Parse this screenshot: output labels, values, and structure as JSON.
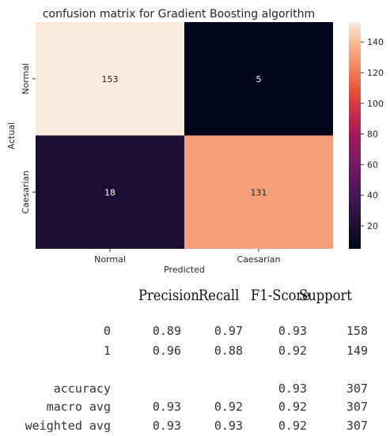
{
  "chart_data": {
    "type": "heatmap",
    "title": "confusion matrix for Gradient Boosting algorithm",
    "xlabel": "Predicted",
    "ylabel": "Actual",
    "x_categories": [
      "Normal",
      "Caesarian"
    ],
    "y_categories": [
      "Normal",
      "Caesarian"
    ],
    "values": [
      [
        153,
        5
      ],
      [
        18,
        131
      ]
    ],
    "colorbar": {
      "min": 5,
      "max": 153,
      "ticks": [
        20,
        40,
        60,
        80,
        100,
        120,
        140
      ]
    },
    "colormap": "rocket"
  },
  "report": {
    "headers": [
      "Precision",
      "Recall",
      "F1-Score",
      "Support"
    ],
    "rows": [
      {
        "label": "0",
        "precision": "0.89",
        "recall": "0.97",
        "f1": "0.93",
        "support": "158"
      },
      {
        "label": "1",
        "precision": "0.96",
        "recall": "0.88",
        "f1": "0.92",
        "support": "149"
      },
      {
        "label": "accuracy",
        "precision": "",
        "recall": "",
        "f1": "0.93",
        "support": "307"
      },
      {
        "label": "macro avg",
        "precision": "0.93",
        "recall": "0.92",
        "f1": "0.92",
        "support": "307"
      },
      {
        "label": "weighted avg",
        "precision": "0.93",
        "recall": "0.93",
        "f1": "0.92",
        "support": "307"
      }
    ]
  }
}
